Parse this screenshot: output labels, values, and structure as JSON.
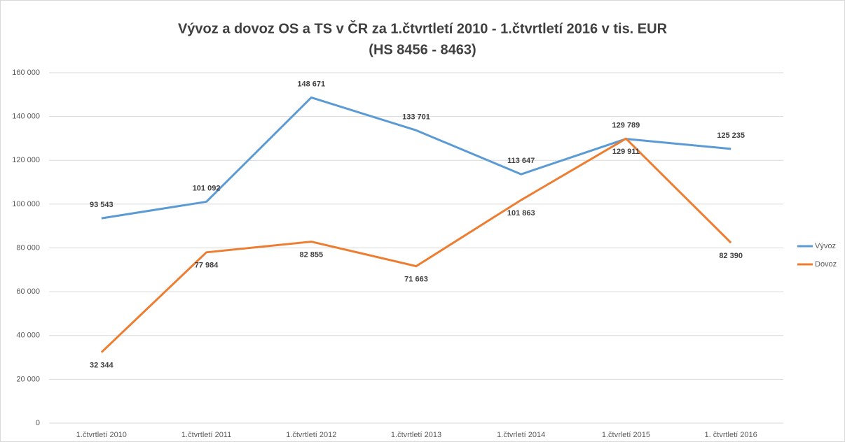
{
  "chart_data": {
    "type": "line",
    "title": [
      "Vývoz a dovoz OS a TS v ČR za 1.čtvrtletí 2010 - 1.čtvrtletí 2016 v tis. EUR",
      "(HS 8456 - 8463)"
    ],
    "categories": [
      "1.čtvrtletí 2010",
      "1.čtvrtletí 2011",
      "1.čtvrtletí 2012",
      "1.čtvrtletí 2013",
      "1.čtvrletí 2014",
      "1.čtvrletí 2015",
      "1. čtvrtletí 2016"
    ],
    "series": [
      {
        "name": "Vývoz",
        "color": "#5b9bd5",
        "values": [
          93543,
          101092,
          148671,
          133701,
          113647,
          129789,
          125235
        ],
        "value_labels": [
          "93 543",
          "101 092",
          "148 671",
          "133 701",
          "113 647",
          "129 789",
          "125 235"
        ]
      },
      {
        "name": "Dovoz",
        "color": "#ed7d31",
        "values": [
          32344,
          77984,
          82855,
          71663,
          101863,
          129911,
          82390
        ],
        "value_labels": [
          "32 344",
          "77 984",
          "82 855",
          "71 663",
          "101 863",
          "129 911",
          "82 390"
        ]
      }
    ],
    "ylim": [
      0,
      160000
    ],
    "yticks": [
      0,
      {
        "value": 20000,
        "label": "20 000"
      },
      {
        "value": 40000,
        "label": "40 000"
      },
      {
        "value": 60000,
        "label": "60 000"
      },
      {
        "value": 80000,
        "label": "80 000"
      },
      {
        "value": 100000,
        "label": "100 000"
      },
      {
        "value": 120000,
        "label": "120 000"
      },
      {
        "value": 140000,
        "label": "140 000"
      },
      {
        "value": 160000,
        "label": "160 000"
      }
    ],
    "grid": true,
    "legend": "right"
  }
}
